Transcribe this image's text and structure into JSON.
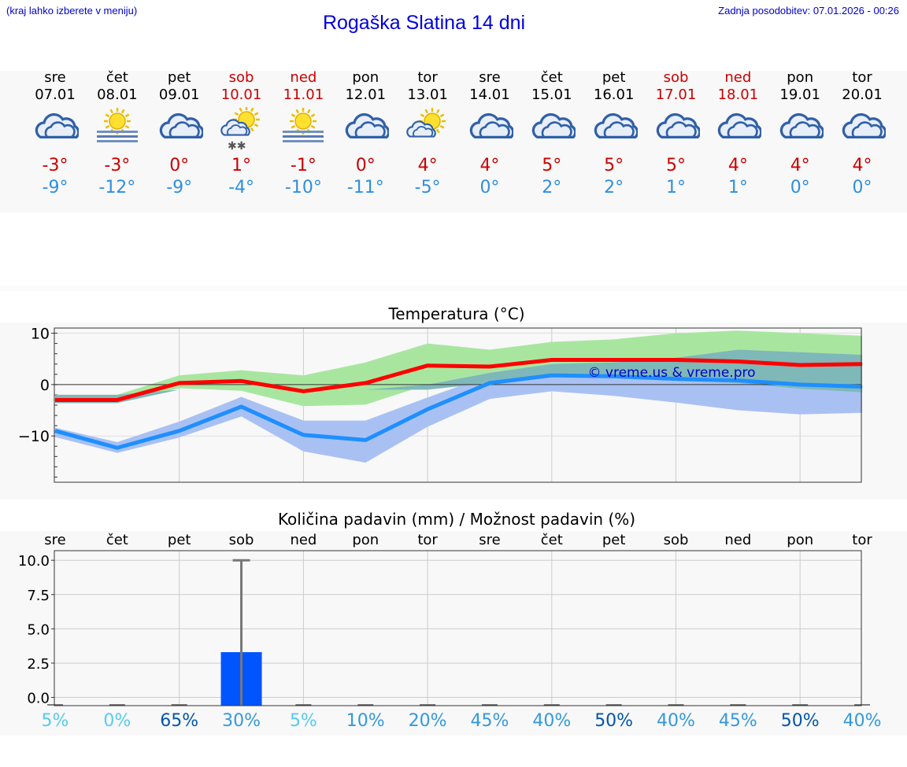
{
  "header": {
    "left_note": "(kraj lahko izberete v meniju)",
    "title": "Rogaška Slatina 14 dni",
    "last_update": "Zadnja posodobitev: 07.01.2026 - 00:26"
  },
  "days": [
    {
      "name": "sre",
      "date": "07.01",
      "weekend": false,
      "icon": "cloudy-icon",
      "tmax": "-3°",
      "tmin": "-9°",
      "precip_chance": "5%"
    },
    {
      "name": "čet",
      "date": "08.01",
      "weekend": false,
      "icon": "sun-fog-icon",
      "tmax": "-3°",
      "tmin": "-12°",
      "precip_chance": "0%"
    },
    {
      "name": "pet",
      "date": "09.01",
      "weekend": false,
      "icon": "cloudy-icon",
      "tmax": "0°",
      "tmin": "-9°",
      "precip_chance": "65%"
    },
    {
      "name": "sob",
      "date": "10.01",
      "weekend": true,
      "icon": "sun-cloud-snow-icon",
      "tmax": "1°",
      "tmin": "-4°",
      "precip_chance": "30%"
    },
    {
      "name": "ned",
      "date": "11.01",
      "weekend": true,
      "icon": "sun-fog-icon",
      "tmax": "-1°",
      "tmin": "-10°",
      "precip_chance": "5%"
    },
    {
      "name": "pon",
      "date": "12.01",
      "weekend": false,
      "icon": "cloudy-icon",
      "tmax": "0°",
      "tmin": "-11°",
      "precip_chance": "10%"
    },
    {
      "name": "tor",
      "date": "13.01",
      "weekend": false,
      "icon": "sun-cloud-icon",
      "tmax": "4°",
      "tmin": "-5°",
      "precip_chance": "20%"
    },
    {
      "name": "sre",
      "date": "14.01",
      "weekend": false,
      "icon": "cloudy-icon",
      "tmax": "4°",
      "tmin": "0°",
      "precip_chance": "45%"
    },
    {
      "name": "čet",
      "date": "15.01",
      "weekend": false,
      "icon": "cloudy-icon",
      "tmax": "5°",
      "tmin": "2°",
      "precip_chance": "40%"
    },
    {
      "name": "pet",
      "date": "16.01",
      "weekend": false,
      "icon": "cloudy-icon",
      "tmax": "5°",
      "tmin": "2°",
      "precip_chance": "50%"
    },
    {
      "name": "sob",
      "date": "17.01",
      "weekend": true,
      "icon": "cloudy-icon",
      "tmax": "5°",
      "tmin": "1°",
      "precip_chance": "40%"
    },
    {
      "name": "ned",
      "date": "18.01",
      "weekend": true,
      "icon": "cloudy-icon",
      "tmax": "4°",
      "tmin": "1°",
      "precip_chance": "45%"
    },
    {
      "name": "pon",
      "date": "19.01",
      "weekend": false,
      "icon": "cloudy-icon",
      "tmax": "4°",
      "tmin": "0°",
      "precip_chance": "50%"
    },
    {
      "name": "tor",
      "date": "20.01",
      "weekend": false,
      "icon": "cloudy-icon",
      "tmax": "4°",
      "tmin": "0°",
      "precip_chance": "40%"
    }
  ],
  "colors": {
    "weekend": "#cc0000",
    "tmax": "#cc0000",
    "tmin": "#2f8fe0",
    "max_line": "#ff0000",
    "min_line": "#1e8fff",
    "max_band": "#a8e6a0",
    "min_band": "#a9c1f2",
    "bar": "#0055ff",
    "pct_light": "#55ccee",
    "pct_mid": "#3399dd",
    "pct_dark": "#0055aa"
  },
  "chart_data": [
    {
      "type": "line",
      "title": "Temperatura (°C)",
      "xlabel": "",
      "ylabel": "",
      "ylim": [
        -19,
        11
      ],
      "yticks": [
        10,
        0,
        -10
      ],
      "grid": true,
      "x": [
        0,
        1,
        2,
        3,
        4,
        5,
        6,
        7,
        8,
        9,
        10,
        11,
        12,
        13
      ],
      "watermark": "© vreme.us & vreme.pro",
      "series": [
        {
          "name": "max",
          "values": [
            -3,
            -3,
            0.3,
            0.7,
            -1.3,
            0.3,
            3.7,
            3.5,
            4.8,
            4.8,
            4.8,
            4.5,
            3.8,
            4
          ]
        },
        {
          "name": "min",
          "values": [
            -9,
            -12.3,
            -9,
            -4.3,
            -9.8,
            -10.8,
            -4.8,
            0.3,
            1.8,
            1.6,
            1.1,
            0.8,
            0,
            -0.4
          ]
        },
        {
          "name": "max_band_high",
          "values": [
            -2,
            -2,
            1.8,
            2.8,
            1.8,
            4.3,
            8,
            6.8,
            8.3,
            8.8,
            10,
            10.5,
            10,
            9.5
          ]
        },
        {
          "name": "max_band_low",
          "values": [
            -3.6,
            -3.6,
            -0.7,
            -1.2,
            -4.2,
            -3.9,
            0,
            2.3,
            4,
            4,
            4,
            3.8,
            3.3,
            3.5
          ]
        },
        {
          "name": "min_band_high",
          "values": [
            -8.4,
            -11.2,
            -7.2,
            -2.4,
            -7,
            -7,
            -2.5,
            1.8,
            3,
            3.3,
            3.8,
            3.2,
            2.3,
            1.5
          ]
        },
        {
          "name": "min_band_low",
          "values": [
            -10.2,
            -13.3,
            -10.3,
            -6.2,
            -13,
            -15.2,
            -8.2,
            -2.8,
            -1.3,
            -2.2,
            -3.5,
            -5,
            -5.8,
            -5.5
          ]
        },
        {
          "name": "overlap_high",
          "values": [
            -2,
            -2,
            -1,
            -1,
            -1,
            -1,
            0,
            2.3,
            4,
            4.3,
            5.2,
            6.8,
            6.3,
            5.8
          ]
        },
        {
          "name": "overlap_low",
          "values": [
            -3.6,
            -3.6,
            -1,
            -1,
            -1,
            -1,
            -1,
            0.3,
            1.5,
            1.5,
            0.8,
            0.3,
            -0.8,
            -1.5
          ]
        }
      ]
    },
    {
      "type": "bar",
      "title": "Količina padavin (mm) / Možnost padavin (%)",
      "categories": [
        "sre",
        "čet",
        "pet",
        "sob",
        "ned",
        "pon",
        "tor",
        "sre",
        "čet",
        "pet",
        "sob",
        "ned",
        "pon",
        "tor"
      ],
      "values": [
        0,
        0,
        0,
        3.3,
        0,
        0,
        0,
        0,
        0,
        0,
        0,
        0,
        0,
        0
      ],
      "error_high": [
        0,
        0,
        0,
        10,
        0,
        0,
        0,
        0,
        0,
        0,
        0,
        0,
        0,
        0
      ],
      "ylim": [
        -0.6,
        10.7
      ],
      "yticks": [
        "10.0",
        "7.5",
        "5.0",
        "2.5",
        "0.0"
      ],
      "precip_chance": [
        "5%",
        "0%",
        "65%",
        "30%",
        "5%",
        "10%",
        "20%",
        "45%",
        "40%",
        "50%",
        "40%",
        "45%",
        "50%",
        "40%"
      ]
    }
  ]
}
